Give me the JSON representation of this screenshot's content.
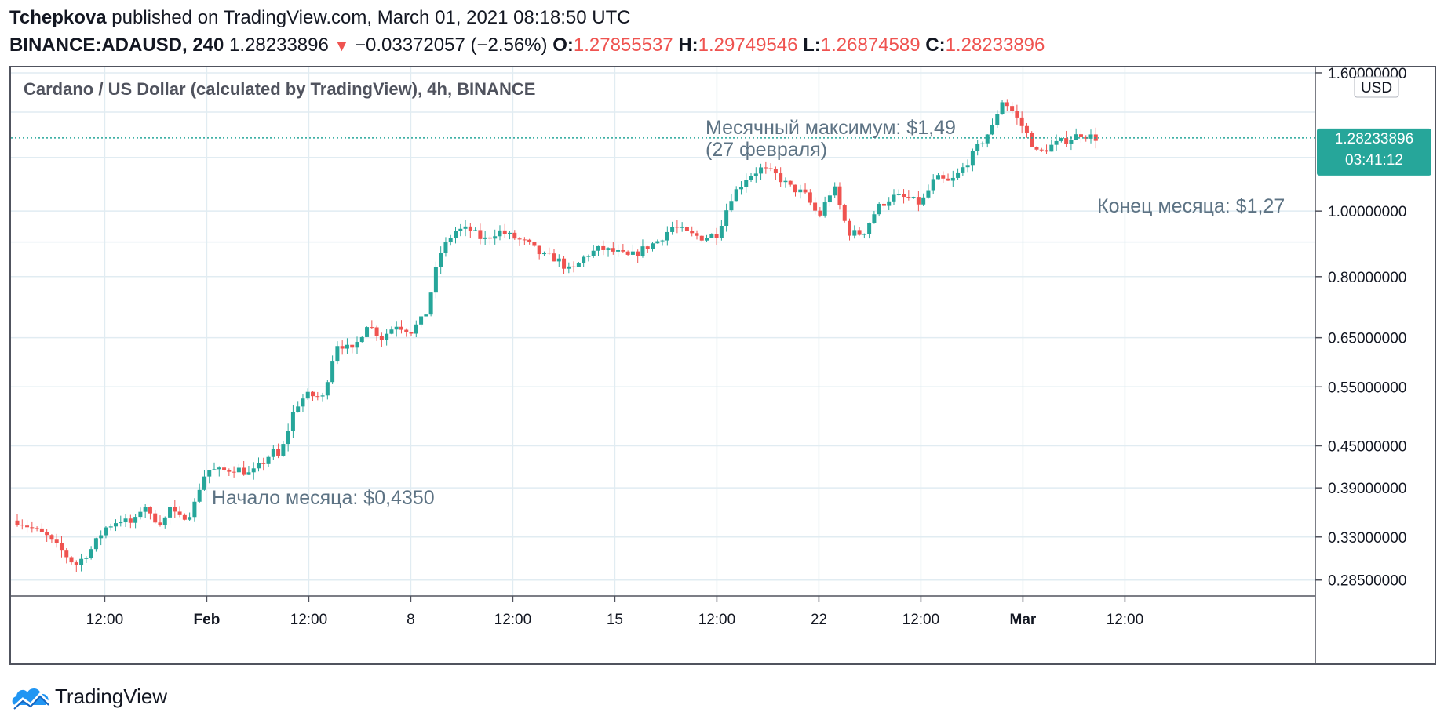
{
  "header": {
    "author": "Tchepkova",
    "published_text": " published on TradingView.com, March 01, 2021 08:18:50 UTC",
    "symbol": "BINANCE:ADAUSD, 240",
    "last_price": "1.28233896",
    "change_arrow": "▼",
    "change": "−0.03372057 (−2.56%)",
    "open_label": "O:",
    "open": "1.27855537",
    "high_label": "H:",
    "high": "1.29749546",
    "low_label": "L:",
    "low": "1.26874589",
    "close_label": "C:",
    "close": "1.28233896"
  },
  "footer": {
    "brand": "TradingView",
    "logo_icon": "tradingview-cloud-icon"
  },
  "colors": {
    "up": "#26a69a",
    "down": "#ef5350",
    "grid": "#e1ecf2",
    "text": "#131722",
    "annotation": "#5d7384",
    "badge": "#26a69a"
  },
  "chart_data": {
    "type": "candlestick",
    "title": "Cardano / US Dollar (calculated by TradingView), 4h, BINANCE",
    "currency_button": "USD",
    "scale": "log",
    "ylim": [
      0.27,
      1.63
    ],
    "y_ticks": [
      "1.60000000",
      "1.00000000",
      "0.80000000",
      "0.65000000",
      "0.55000000",
      "0.45000000",
      "0.39000000",
      "0.33000000",
      "0.28500000"
    ],
    "x_ticks": [
      "12:00",
      "Feb",
      "12:00",
      "8",
      "12:00",
      "15",
      "12:00",
      "22",
      "12:00",
      "Mar",
      "12:00"
    ],
    "last_price_label": "1.28233896",
    "countdown": "03:41:12",
    "series": [
      {
        "t": 0,
        "v": 0.349
      },
      {
        "t": 2,
        "v": 0.331
      },
      {
        "t": 3,
        "v": 0.315
      },
      {
        "t": 4,
        "v": 0.3
      },
      {
        "t": 5,
        "v": 0.315
      },
      {
        "t": 6,
        "v": 0.34
      },
      {
        "t": 7,
        "v": 0.35
      },
      {
        "t": 8,
        "v": 0.345
      },
      {
        "t": 8.7,
        "v": 0.372
      },
      {
        "t": 9,
        "v": 0.355
      },
      {
        "t": 10,
        "v": 0.346
      },
      {
        "t": 10.5,
        "v": 0.366
      },
      {
        "t": 11,
        "v": 0.35
      },
      {
        "t": 12,
        "v": 0.36
      },
      {
        "t": 12.5,
        "v": 0.39
      },
      {
        "t": 13,
        "v": 0.415
      },
      {
        "t": 14,
        "v": 0.413
      },
      {
        "t": 15,
        "v": 0.417
      },
      {
        "t": 16,
        "v": 0.408
      },
      {
        "t": 17,
        "v": 0.428
      },
      {
        "t": 17.5,
        "v": 0.442
      },
      {
        "t": 18,
        "v": 0.432
      },
      {
        "t": 19,
        "v": 0.51
      },
      {
        "t": 19.5,
        "v": 0.527
      },
      {
        "t": 20,
        "v": 0.535
      },
      {
        "t": 21,
        "v": 0.53
      },
      {
        "t": 21.5,
        "v": 0.595
      },
      {
        "t": 22,
        "v": 0.64
      },
      {
        "t": 23,
        "v": 0.62
      },
      {
        "t": 24,
        "v": 0.682
      },
      {
        "t": 25,
        "v": 0.65
      },
      {
        "t": 26,
        "v": 0.68
      },
      {
        "t": 27,
        "v": 0.664
      },
      {
        "t": 28,
        "v": 0.7
      },
      {
        "t": 29,
        "v": 0.866
      },
      {
        "t": 30,
        "v": 0.935
      },
      {
        "t": 31,
        "v": 0.94
      },
      {
        "t": 32,
        "v": 0.905
      },
      {
        "t": 33,
        "v": 0.935
      },
      {
        "t": 34,
        "v": 0.915
      },
      {
        "t": 35,
        "v": 0.895
      },
      {
        "t": 36,
        "v": 0.86
      },
      {
        "t": 37,
        "v": 0.85
      },
      {
        "t": 38,
        "v": 0.812
      },
      {
        "t": 39,
        "v": 0.86
      },
      {
        "t": 40,
        "v": 0.88
      },
      {
        "t": 41,
        "v": 0.87
      },
      {
        "t": 42,
        "v": 0.855
      },
      {
        "t": 43,
        "v": 0.88
      },
      {
        "t": 44,
        "v": 0.905
      },
      {
        "t": 45,
        "v": 0.95
      },
      {
        "t": 46,
        "v": 0.925
      },
      {
        "t": 47,
        "v": 0.914
      },
      {
        "t": 48,
        "v": 0.925
      },
      {
        "t": 49,
        "v": 1.05
      },
      {
        "t": 50,
        "v": 1.12
      },
      {
        "t": 51,
        "v": 1.155
      },
      {
        "t": 52,
        "v": 1.132
      },
      {
        "t": 53,
        "v": 1.085
      },
      {
        "t": 54,
        "v": 1.06
      },
      {
        "t": 55,
        "v": 0.98
      },
      {
        "t": 56,
        "v": 1.09
      },
      {
        "t": 57,
        "v": 0.93
      },
      {
        "t": 58,
        "v": 0.925
      },
      {
        "t": 59,
        "v": 1.01
      },
      {
        "t": 60,
        "v": 1.05
      },
      {
        "t": 61,
        "v": 1.045
      },
      {
        "t": 62,
        "v": 1.025
      },
      {
        "t": 63,
        "v": 1.12
      },
      {
        "t": 64,
        "v": 1.1
      },
      {
        "t": 65,
        "v": 1.165
      },
      {
        "t": 66,
        "v": 1.25
      },
      {
        "t": 67,
        "v": 1.34
      },
      {
        "t": 67.5,
        "v": 1.46
      },
      {
        "t": 68,
        "v": 1.43
      },
      {
        "t": 69,
        "v": 1.33
      },
      {
        "t": 70,
        "v": 1.215
      },
      {
        "t": 71,
        "v": 1.25
      },
      {
        "t": 72,
        "v": 1.275
      },
      {
        "t": 73,
        "v": 1.3
      },
      {
        "t": 74,
        "v": 1.282
      }
    ],
    "annotations": [
      {
        "text": "Месячный максимум: $1,49",
        "text2": "(27 февраля)"
      },
      {
        "text": "Конец месяца: $1,27"
      },
      {
        "text": "Начало месяца: $0,4350"
      }
    ]
  }
}
